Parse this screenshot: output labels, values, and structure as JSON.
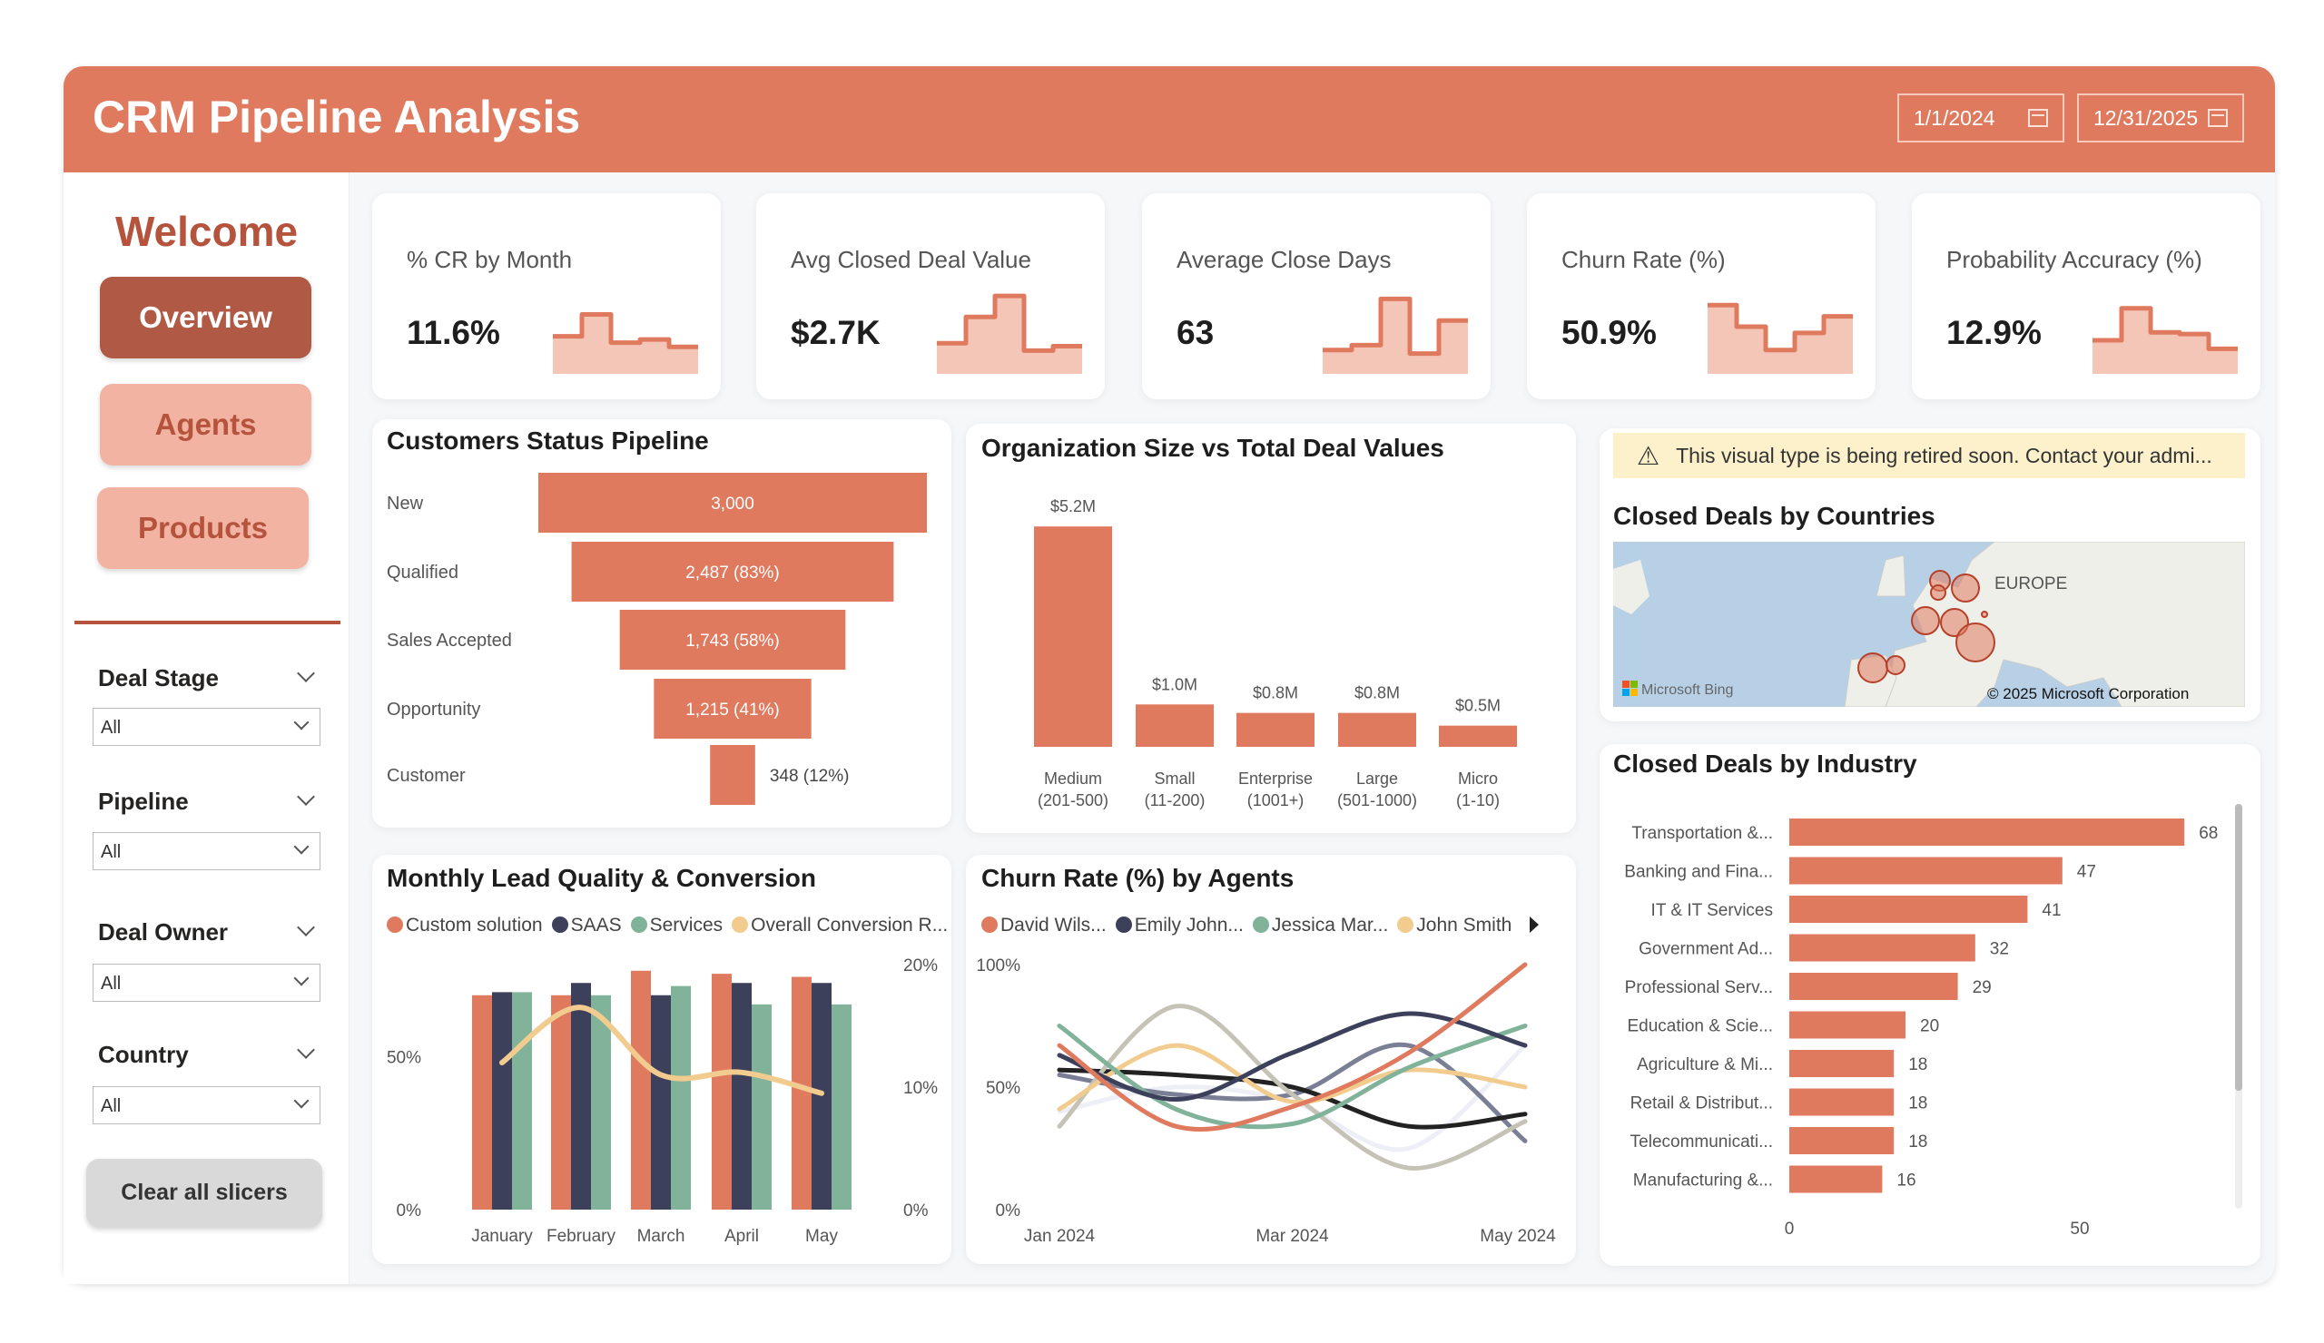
{
  "header": {
    "title": "CRM Pipeline Analysis",
    "start_date": "1/1/2024",
    "end_date": "12/31/2025",
    "color": "#e07a5f"
  },
  "sidebar": {
    "welcome": "Welcome",
    "nav": [
      {
        "label": "Overview",
        "active": true
      },
      {
        "label": "Agents",
        "active": false
      },
      {
        "label": "Products",
        "active": false
      }
    ],
    "slicers": [
      {
        "label": "Deal Stage",
        "value": "All"
      },
      {
        "label": "Pipeline",
        "value": "All"
      },
      {
        "label": "Deal Owner",
        "value": "All"
      },
      {
        "label": "Country",
        "value": "All"
      }
    ],
    "clear_label": "Clear all slicers"
  },
  "kpis": [
    {
      "title": "% CR by Month",
      "value": "11.6%",
      "trend": [
        138,
        227,
        112,
        125,
        95
      ]
    },
    {
      "title": "Avg Closed Deal Value",
      "value": "$2.7K",
      "trend": [
        110,
        217,
        302,
        80,
        98
      ]
    },
    {
      "title": "Average Close Days",
      "value": "63",
      "trend": [
        82,
        102,
        290,
        68,
        202
      ]
    },
    {
      "title": "Churn Rate (%)",
      "value": "50.9%",
      "trend": [
        265,
        177,
        82,
        152,
        219
      ]
    },
    {
      "title": "Probability Accuracy (%)",
      "value": "12.9%",
      "trend": [
        122,
        252,
        154,
        147,
        87
      ]
    }
  ],
  "funnel": {
    "title": "Customers Status Pipeline",
    "stages": [
      {
        "label": "New",
        "value": 3000,
        "text": "3,000"
      },
      {
        "label": "Qualified",
        "value": 2487,
        "text": "2,487 (83%)"
      },
      {
        "label": "Sales Accepted",
        "value": 1743,
        "text": "1,743 (58%)"
      },
      {
        "label": "Opportunity",
        "value": 1215,
        "text": "1,215 (41%)"
      },
      {
        "label": "Customer",
        "value": 348,
        "text": "348 (12%)"
      }
    ]
  },
  "chart_data": [
    {
      "type": "bar",
      "title": "Organization Size vs Total Deal Values",
      "categories": [
        [
          "Medium",
          "(201-500)"
        ],
        [
          "Small",
          "(11-200)"
        ],
        [
          "Enterprise",
          "(1001+)"
        ],
        [
          "Large",
          "(501-1000)"
        ],
        [
          "Micro",
          "(1-10)"
        ]
      ],
      "values": [
        5.2,
        1.0,
        0.8,
        0.8,
        0.5
      ],
      "labels": [
        "$5.2M",
        "$1.0M",
        "$0.8M",
        "$0.8M",
        "$0.5M"
      ],
      "unit": "$M"
    },
    {
      "type": "bar",
      "title": "Monthly Lead Quality & Conversion",
      "categories": [
        "January",
        "February",
        "March",
        "April",
        "May"
      ],
      "series": [
        {
          "name": "Custom solution",
          "color": "#e07a5f",
          "values": [
            70,
            70,
            78,
            77,
            76
          ]
        },
        {
          "name": "SAAS",
          "color": "#3d405b",
          "values": [
            71,
            74,
            70,
            74,
            74
          ]
        },
        {
          "name": "Services",
          "color": "#81b29a",
          "values": [
            71,
            70,
            73,
            67,
            67
          ]
        }
      ],
      "line": {
        "name": "Overall Conversion R...",
        "color": "#f2cc8f",
        "values": [
          12,
          16.5,
          11,
          11.2,
          9.5
        ]
      },
      "y_left": {
        "ticks": [
          "0%",
          "50%"
        ],
        "max": 80
      },
      "y_right": {
        "ticks": [
          "0%",
          "10%",
          "20%"
        ],
        "max": 20
      }
    },
    {
      "type": "line",
      "title": "Churn Rate (%) by Agents",
      "x": [
        "Jan 2024",
        "Feb 2024",
        "Mar 2024",
        "Apr 2024",
        "May 2024"
      ],
      "x_ticks": [
        "Jan 2024",
        "Mar 2024",
        "May 2024"
      ],
      "y_ticks": [
        "0%",
        "50%",
        "100%"
      ],
      "ylim": [
        0,
        100
      ],
      "series": [
        {
          "name": "David Wils...",
          "color": "#e07a5f",
          "values": [
            67,
            34,
            42,
            64,
            100
          ]
        },
        {
          "name": "Emily John...",
          "color": "#3d405b",
          "values": [
            63,
            45,
            64,
            80,
            67
          ]
        },
        {
          "name": "Jessica Mar...",
          "color": "#81b29a",
          "values": [
            75,
            41,
            35,
            58,
            75
          ]
        },
        {
          "name": "John Smith",
          "color": "#f2cc8f",
          "values": [
            41,
            67,
            44,
            57,
            50
          ]
        },
        {
          "color": "#c4c3b6",
          "values": [
            34,
            83,
            47,
            17,
            36
          ]
        },
        {
          "color": "#222222",
          "values": [
            57,
            55,
            50,
            34,
            39
          ]
        },
        {
          "color": "#7a7f95",
          "values": [
            55,
            47,
            47,
            67,
            28
          ]
        },
        {
          "color": "#eeeff6",
          "values": [
            40,
            50,
            44,
            25,
            67
          ]
        }
      ]
    },
    {
      "type": "bar",
      "orientation": "horizontal",
      "title": "Closed Deals by Industry",
      "categories": [
        "Transportation &...",
        "Banking and Fina...",
        "IT & IT Services",
        "Government Ad...",
        "Professional Serv...",
        "Education & Scie...",
        "Agriculture & Mi...",
        "Retail & Distribut...",
        "Telecommunicati...",
        "Manufacturing &..."
      ],
      "values": [
        68,
        47,
        41,
        32,
        29,
        20,
        18,
        18,
        18,
        16
      ],
      "x_ticks": [
        0,
        50
      ]
    }
  ],
  "map": {
    "warning": "This visual type is being retired soon. Contact your admi...",
    "title": "Closed Deals by Countries",
    "region_label": "EUROPE",
    "provider": "Microsoft Bing",
    "copyright": "© 2025 Microsoft Corporation"
  }
}
